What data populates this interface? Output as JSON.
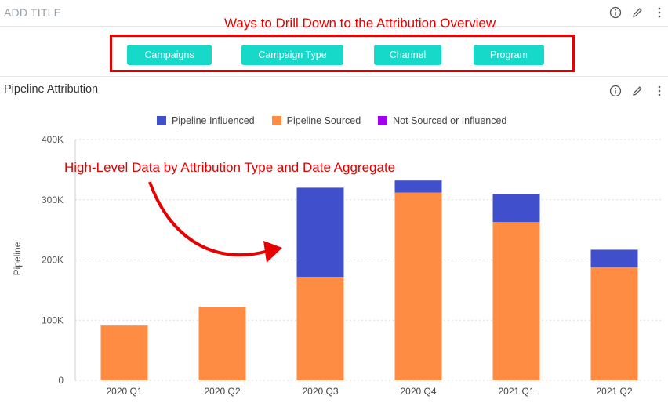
{
  "header": {
    "title": "ADD TITLE"
  },
  "annotations": {
    "top": "Ways to Drill Down to the Attribution Overview",
    "middle": "High-Level Data by Attribution Type and Date Aggregate"
  },
  "drill_buttons": [
    "Campaigns",
    "Campaign Type",
    "Channel",
    "Program"
  ],
  "panel": {
    "title": "Pipeline Attribution"
  },
  "colors": {
    "influenced": "#4050cc",
    "sourced": "#ff8c42",
    "neither": "#a000f0",
    "button": "#17d9c9",
    "annotation": "#e60000"
  },
  "icons": [
    "info-icon",
    "pencil-icon",
    "more-vertical-icon"
  ],
  "chart_data": {
    "type": "bar",
    "stacked": true,
    "categories": [
      "2020 Q1",
      "2020 Q2",
      "2020 Q3",
      "2020 Q4",
      "2021 Q1",
      "2021 Q2"
    ],
    "series": [
      {
        "name": "Pipeline Influenced",
        "values": [
          0,
          0,
          148000,
          20000,
          47000,
          29000
        ]
      },
      {
        "name": "Pipeline Sourced",
        "values": [
          91000,
          122000,
          172000,
          312000,
          263000,
          188000
        ]
      },
      {
        "name": "Not Sourced or Influenced",
        "values": [
          0,
          0,
          0,
          0,
          0,
          0
        ]
      }
    ],
    "ylabel": "Pipeline",
    "xlabel": "",
    "ylim": [
      0,
      400000
    ],
    "yticks": [
      "0",
      "100K",
      "200K",
      "300K",
      "400K"
    ],
    "grid": true,
    "legend_position": "top"
  }
}
